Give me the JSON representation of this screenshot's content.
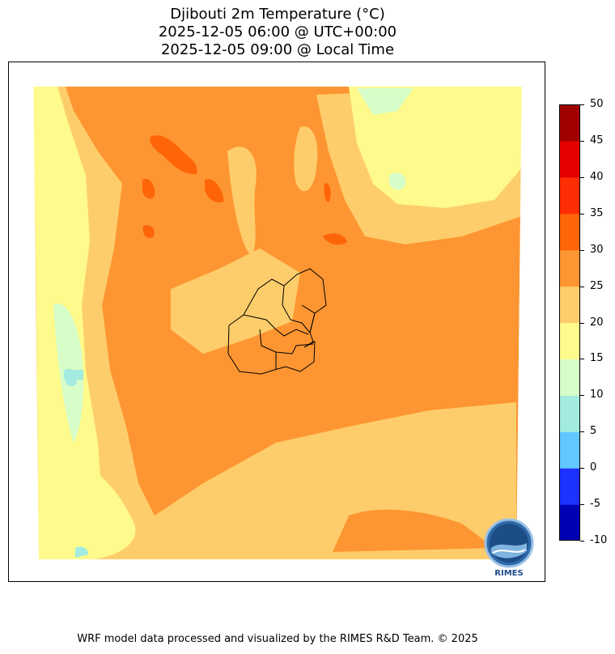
{
  "title": {
    "line1": "Djibouti 2m Temperature (°C)",
    "line2": "2025-12-05 06:00 @ UTC+00:00",
    "line3": "2025-12-05 09:00 @ Local Time"
  },
  "colorbar": {
    "ticks": [
      "50",
      "45",
      "40",
      "35",
      "30",
      "25",
      "20",
      "15",
      "10",
      "5",
      "0",
      "-5",
      "-10"
    ],
    "colors": [
      "#0000b4",
      "#1e32ff",
      "#63c7ff",
      "#a3ebe1",
      "#d7fdc8",
      "#fefa8c",
      "#fecd6b",
      "#fd9632",
      "#fe6408",
      "#ff2d04",
      "#e60000",
      "#a00000"
    ]
  },
  "logo": {
    "text": "RIMES"
  },
  "footer": "WRF model data processed and visualized by the RIMES R&D Team. © 2025"
}
